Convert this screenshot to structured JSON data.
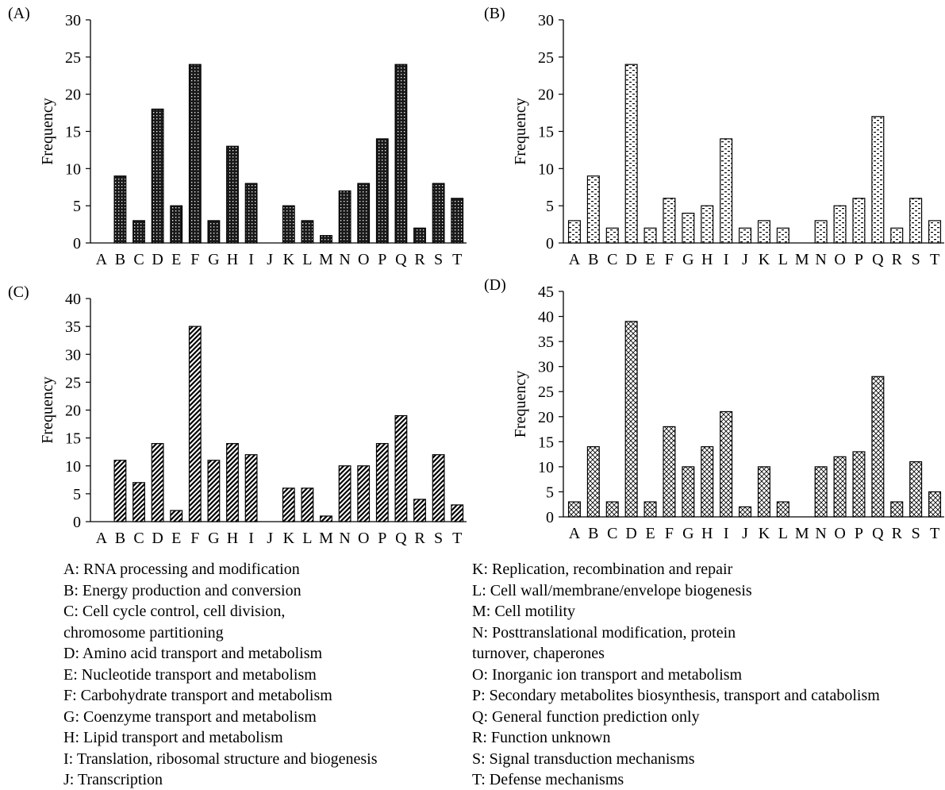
{
  "chart_data": [
    {
      "type": "bar",
      "panel_label": "(A)",
      "ylabel": "Frequency",
      "ylim": [
        0,
        30
      ],
      "yticks": [
        0,
        5,
        10,
        15,
        20,
        25,
        30
      ],
      "categories": [
        "A",
        "B",
        "C",
        "D",
        "E",
        "F",
        "G",
        "H",
        "I",
        "J",
        "K",
        "L",
        "M",
        "N",
        "O",
        "P",
        "Q",
        "R",
        "S",
        "T"
      ],
      "values": [
        0,
        9,
        3,
        18,
        5,
        24,
        3,
        13,
        8,
        0,
        5,
        3,
        1,
        7,
        8,
        14,
        24,
        2,
        8,
        6
      ],
      "pattern": "dots"
    },
    {
      "type": "bar",
      "panel_label": "(B)",
      "ylabel": "Frequency",
      "ylim": [
        0,
        30
      ],
      "yticks": [
        0,
        5,
        10,
        15,
        20,
        25,
        30
      ],
      "categories": [
        "A",
        "B",
        "C",
        "D",
        "E",
        "F",
        "G",
        "H",
        "I",
        "J",
        "K",
        "L",
        "M",
        "N",
        "O",
        "P",
        "Q",
        "R",
        "S",
        "T"
      ],
      "values": [
        3,
        9,
        2,
        24,
        2,
        6,
        4,
        5,
        14,
        2,
        3,
        2,
        0,
        3,
        5,
        6,
        17,
        2,
        6,
        3
      ],
      "pattern": "dashes"
    },
    {
      "type": "bar",
      "panel_label": "(C)",
      "ylabel": "Frequency",
      "ylim": [
        0,
        40
      ],
      "yticks": [
        0,
        5,
        10,
        15,
        20,
        25,
        30,
        35,
        40
      ],
      "categories": [
        "A",
        "B",
        "C",
        "D",
        "E",
        "F",
        "G",
        "H",
        "I",
        "J",
        "K",
        "L",
        "M",
        "N",
        "O",
        "P",
        "Q",
        "R",
        "S",
        "T"
      ],
      "values": [
        0,
        11,
        7,
        14,
        2,
        35,
        11,
        14,
        12,
        0,
        6,
        6,
        1,
        10,
        10,
        14,
        19,
        4,
        12,
        3
      ],
      "pattern": "diagonal"
    },
    {
      "type": "bar",
      "panel_label": "(D)",
      "ylabel": "Frequency",
      "ylim": [
        0,
        45
      ],
      "yticks": [
        0,
        5,
        10,
        15,
        20,
        25,
        30,
        35,
        40,
        45
      ],
      "categories": [
        "A",
        "B",
        "C",
        "D",
        "E",
        "F",
        "G",
        "H",
        "I",
        "J",
        "K",
        "L",
        "M",
        "N",
        "O",
        "P",
        "Q",
        "R",
        "S",
        "T"
      ],
      "values": [
        3,
        14,
        3,
        39,
        3,
        18,
        10,
        14,
        21,
        2,
        10,
        3,
        0,
        10,
        12,
        13,
        28,
        3,
        11,
        5
      ],
      "pattern": "crosshatch"
    }
  ],
  "legend": {
    "left": [
      "A: RNA processing and modification",
      "B: Energy production and conversion",
      "C: Cell cycle control, cell division,",
      "chromosome partitioning",
      "D: Amino acid transport and metabolism",
      "E: Nucleotide transport and metabolism",
      "F: Carbohydrate transport and metabolism",
      "G: Coenzyme transport and metabolism",
      "H: Lipid transport and metabolism",
      "I: Translation, ribosomal structure and biogenesis",
      "J: Transcription"
    ],
    "right": [
      "K: Replication, recombination and repair",
      "L: Cell wall/membrane/envelope biogenesis",
      "M: Cell motility",
      "N: Posttranslational modification, protein",
      "turnover, chaperones",
      "O: Inorganic ion transport and metabolism",
      "P: Secondary metabolites biosynthesis, transport and catabolism",
      "Q: General function prediction only",
      "R: Function unknown",
      "S: Signal transduction mechanisms",
      "T: Defense mechanisms"
    ]
  }
}
